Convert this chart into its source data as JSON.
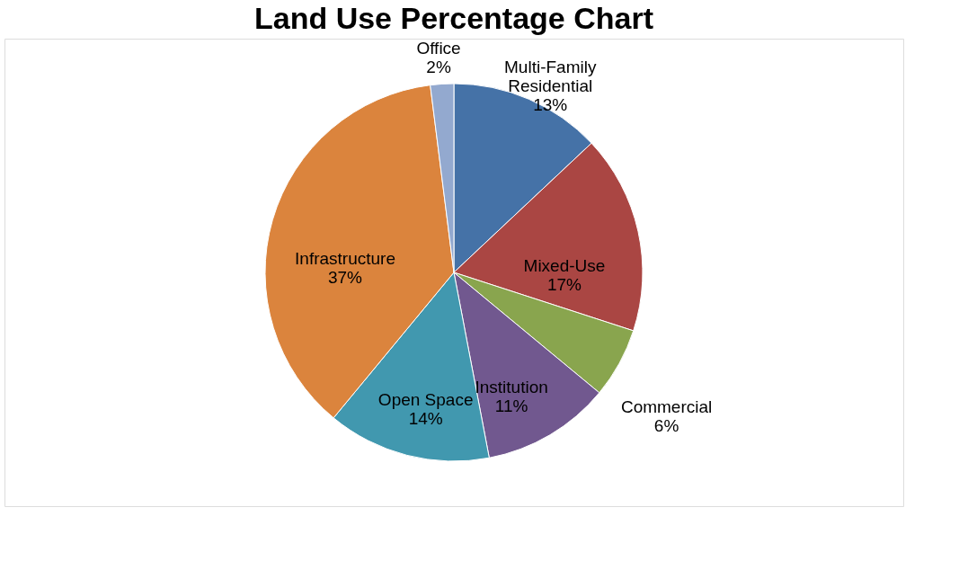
{
  "chart_data": {
    "type": "pie",
    "title": "Land Use Percentage Chart",
    "categories": [
      "Multi-Family Residential",
      "Mixed-Use",
      "Commercial",
      "Institution",
      "Open Space",
      "Infrastructure",
      "Office"
    ],
    "values": [
      13,
      17,
      6,
      11,
      14,
      37,
      2
    ],
    "value_labels": [
      "13%",
      "17%",
      "6%",
      "11%",
      "14%",
      "37%",
      "2%"
    ],
    "colors": [
      "#4572a7",
      "#aa4643",
      "#89a54e",
      "#71588f",
      "#4198af",
      "#db843d",
      "#93a9cf"
    ],
    "legend": false
  }
}
